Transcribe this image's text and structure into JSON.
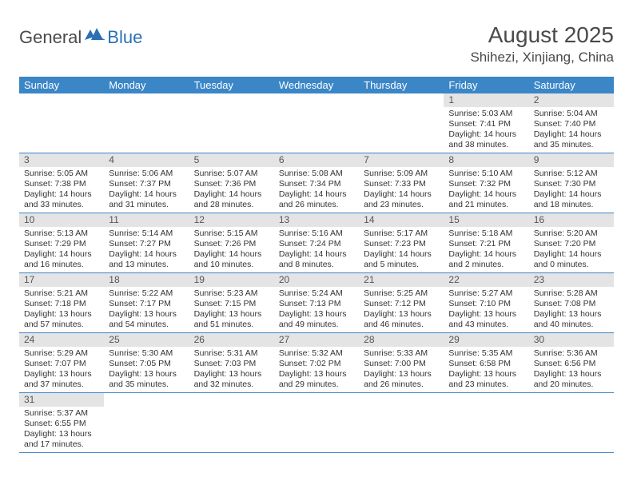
{
  "logo": {
    "text1": "General",
    "text2": "Blue"
  },
  "title": "August 2025",
  "location": "Shihezi, Xinjiang, China",
  "colors": {
    "header_blue": "#3b86c7",
    "daynum_bg": "#e4e4e4",
    "text": "#333333"
  },
  "dow": [
    "Sunday",
    "Monday",
    "Tuesday",
    "Wednesday",
    "Thursday",
    "Friday",
    "Saturday"
  ],
  "weeks": [
    [
      {
        "n": null
      },
      {
        "n": null
      },
      {
        "n": null
      },
      {
        "n": null
      },
      {
        "n": null
      },
      {
        "n": 1,
        "sr": "5:03 AM",
        "ss": "7:41 PM",
        "dh": 14,
        "dm": 38
      },
      {
        "n": 2,
        "sr": "5:04 AM",
        "ss": "7:40 PM",
        "dh": 14,
        "dm": 35
      }
    ],
    [
      {
        "n": 3,
        "sr": "5:05 AM",
        "ss": "7:38 PM",
        "dh": 14,
        "dm": 33
      },
      {
        "n": 4,
        "sr": "5:06 AM",
        "ss": "7:37 PM",
        "dh": 14,
        "dm": 31
      },
      {
        "n": 5,
        "sr": "5:07 AM",
        "ss": "7:36 PM",
        "dh": 14,
        "dm": 28
      },
      {
        "n": 6,
        "sr": "5:08 AM",
        "ss": "7:34 PM",
        "dh": 14,
        "dm": 26
      },
      {
        "n": 7,
        "sr": "5:09 AM",
        "ss": "7:33 PM",
        "dh": 14,
        "dm": 23
      },
      {
        "n": 8,
        "sr": "5:10 AM",
        "ss": "7:32 PM",
        "dh": 14,
        "dm": 21
      },
      {
        "n": 9,
        "sr": "5:12 AM",
        "ss": "7:30 PM",
        "dh": 14,
        "dm": 18
      }
    ],
    [
      {
        "n": 10,
        "sr": "5:13 AM",
        "ss": "7:29 PM",
        "dh": 14,
        "dm": 16
      },
      {
        "n": 11,
        "sr": "5:14 AM",
        "ss": "7:27 PM",
        "dh": 14,
        "dm": 13
      },
      {
        "n": 12,
        "sr": "5:15 AM",
        "ss": "7:26 PM",
        "dh": 14,
        "dm": 10
      },
      {
        "n": 13,
        "sr": "5:16 AM",
        "ss": "7:24 PM",
        "dh": 14,
        "dm": 8
      },
      {
        "n": 14,
        "sr": "5:17 AM",
        "ss": "7:23 PM",
        "dh": 14,
        "dm": 5
      },
      {
        "n": 15,
        "sr": "5:18 AM",
        "ss": "7:21 PM",
        "dh": 14,
        "dm": 2
      },
      {
        "n": 16,
        "sr": "5:20 AM",
        "ss": "7:20 PM",
        "dh": 14,
        "dm": 0
      }
    ],
    [
      {
        "n": 17,
        "sr": "5:21 AM",
        "ss": "7:18 PM",
        "dh": 13,
        "dm": 57
      },
      {
        "n": 18,
        "sr": "5:22 AM",
        "ss": "7:17 PM",
        "dh": 13,
        "dm": 54
      },
      {
        "n": 19,
        "sr": "5:23 AM",
        "ss": "7:15 PM",
        "dh": 13,
        "dm": 51
      },
      {
        "n": 20,
        "sr": "5:24 AM",
        "ss": "7:13 PM",
        "dh": 13,
        "dm": 49
      },
      {
        "n": 21,
        "sr": "5:25 AM",
        "ss": "7:12 PM",
        "dh": 13,
        "dm": 46
      },
      {
        "n": 22,
        "sr": "5:27 AM",
        "ss": "7:10 PM",
        "dh": 13,
        "dm": 43
      },
      {
        "n": 23,
        "sr": "5:28 AM",
        "ss": "7:08 PM",
        "dh": 13,
        "dm": 40
      }
    ],
    [
      {
        "n": 24,
        "sr": "5:29 AM",
        "ss": "7:07 PM",
        "dh": 13,
        "dm": 37
      },
      {
        "n": 25,
        "sr": "5:30 AM",
        "ss": "7:05 PM",
        "dh": 13,
        "dm": 35
      },
      {
        "n": 26,
        "sr": "5:31 AM",
        "ss": "7:03 PM",
        "dh": 13,
        "dm": 32
      },
      {
        "n": 27,
        "sr": "5:32 AM",
        "ss": "7:02 PM",
        "dh": 13,
        "dm": 29
      },
      {
        "n": 28,
        "sr": "5:33 AM",
        "ss": "7:00 PM",
        "dh": 13,
        "dm": 26
      },
      {
        "n": 29,
        "sr": "5:35 AM",
        "ss": "6:58 PM",
        "dh": 13,
        "dm": 23
      },
      {
        "n": 30,
        "sr": "5:36 AM",
        "ss": "6:56 PM",
        "dh": 13,
        "dm": 20
      }
    ],
    [
      {
        "n": 31,
        "sr": "5:37 AM",
        "ss": "6:55 PM",
        "dh": 13,
        "dm": 17
      },
      {
        "n": null
      },
      {
        "n": null
      },
      {
        "n": null
      },
      {
        "n": null
      },
      {
        "n": null
      },
      {
        "n": null
      }
    ]
  ],
  "labels": {
    "sunrise": "Sunrise:",
    "sunset": "Sunset:",
    "daylight": "Daylight:",
    "hours": "hours",
    "and": "and",
    "minutes": "minutes."
  }
}
